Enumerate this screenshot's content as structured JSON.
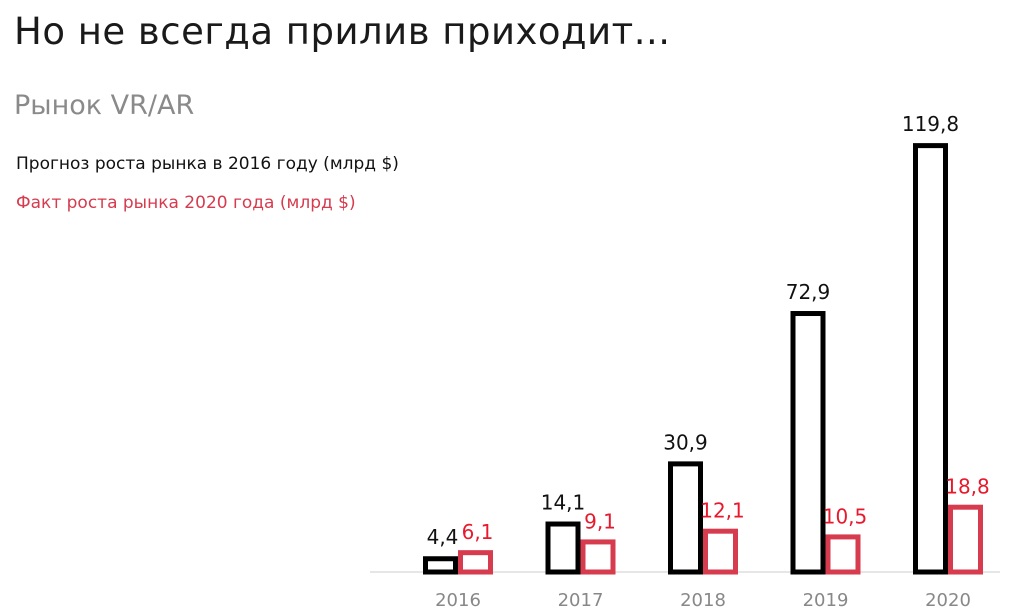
{
  "title": "Но не всегда прилив приходит...",
  "subtitle": "Рынок VR/AR",
  "chart_data": {
    "type": "bar",
    "categories": [
      "2016",
      "2017",
      "2018",
      "2019",
      "2020"
    ],
    "series": [
      {
        "name": "Прогноз роста рынка в 2016 году (млрд $)",
        "values": [
          4.4,
          14.1,
          30.9,
          72.9,
          119.8
        ],
        "labels": [
          "4,4",
          "14,1",
          "30,9",
          "72,9",
          "119,8"
        ],
        "color": "#000000"
      },
      {
        "name": "Факт роста рынка 2020 года (млрд $)",
        "values": [
          6.1,
          9.1,
          12.1,
          10.5,
          18.8
        ],
        "labels": [
          "6,1",
          "9,1",
          "12,1",
          "10,5",
          "18,8"
        ],
        "color": "#d63b4e",
        "label_color": "#e8192c"
      }
    ],
    "xlabel": "",
    "ylabel": "",
    "ylim": [
      0,
      120
    ],
    "grid": false,
    "legend": "top-left"
  }
}
